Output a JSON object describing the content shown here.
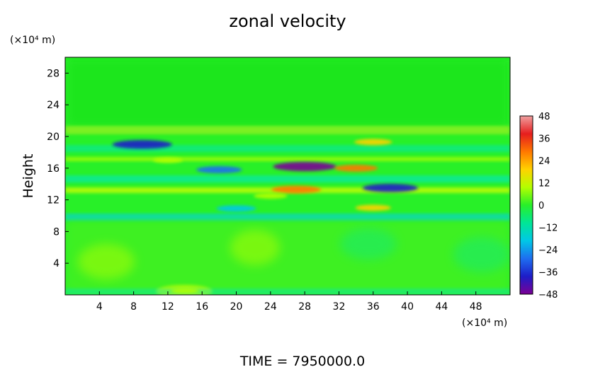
{
  "chart_data": {
    "type": "heatmap",
    "title": "zonal velocity",
    "ylabel": "Height",
    "yunit": "(×10⁴ m)",
    "xunit": "(×10⁴ m)",
    "footer": "TIME = 7950000.0",
    "xlim": [
      0,
      52
    ],
    "ylim": [
      0,
      30
    ],
    "xticks": [
      "4",
      "8",
      "12",
      "16",
      "20",
      "24",
      "28",
      "32",
      "36",
      "40",
      "44",
      "48"
    ],
    "yticks": [
      "4",
      "8",
      "12",
      "16",
      "20",
      "24",
      "28"
    ],
    "colorbar": {
      "range": [
        -48,
        48
      ],
      "ticks": [
        "48",
        "36",
        "24",
        "12",
        "0",
        "−12",
        "−24",
        "−36",
        "−48"
      ],
      "stops": [
        "#7b0094",
        "#1d1dc8",
        "#1e6ef0",
        "#00c8e6",
        "#00e696",
        "#28f028",
        "#b4ff00",
        "#ffd200",
        "#ff7800",
        "#e61e1e",
        "#f0a0a0"
      ]
    },
    "features": [
      {
        "x": 9,
        "y": 19,
        "value": -40
      },
      {
        "x": 18,
        "y": 15.8,
        "value": -26
      },
      {
        "x": 28,
        "y": 16.2,
        "value": -44
      },
      {
        "x": 27,
        "y": 13.3,
        "value": 30
      },
      {
        "x": 38,
        "y": 13.5,
        "value": -36
      },
      {
        "x": 34,
        "y": 16,
        "value": 24
      },
      {
        "x": 36,
        "y": 19.3,
        "value": 18
      },
      {
        "x": 20,
        "y": 10.9,
        "value": -20
      },
      {
        "x": 36,
        "y": 11,
        "value": 16
      },
      {
        "x": 24,
        "y": 12.5,
        "value": 14
      },
      {
        "x": 12,
        "y": 17,
        "value": 10
      },
      {
        "x": 14,
        "y": 0.5,
        "value": 8
      }
    ]
  }
}
